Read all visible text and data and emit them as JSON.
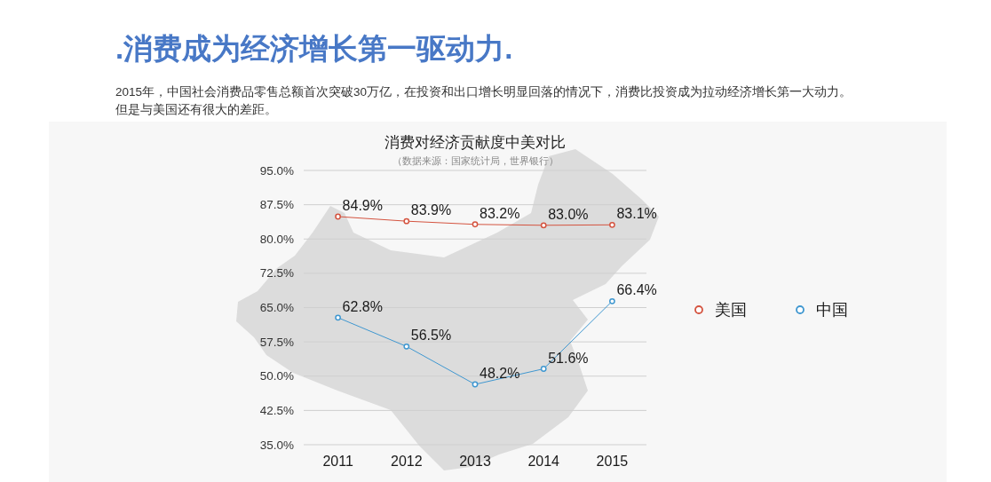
{
  "chart_data": {
    "type": "line",
    "title": ".消费成为经济增长第一驱动力.",
    "subtitle": "2015年，中国社会消费品零售总额首次突破30万亿，在投资和出口增长明显回落的情况下，消费比投资成为拉动经济增长第一大动力。但是与美国还有很大的差距。",
    "annotations": [
      "消费对经济贡献度中美对比",
      "（数据来源：国家统计局，世界银行）"
    ],
    "categories": [
      "2011",
      "2012",
      "2013",
      "2014",
      "2015"
    ],
    "series": [
      {
        "name": "美国",
        "color": "#d4533f",
        "values": [
          84.9,
          83.9,
          83.2,
          83.0,
          83.1
        ],
        "value_labels": [
          "84.9%",
          "83.9%",
          "83.2%",
          "83.0%",
          "83.1%"
        ]
      },
      {
        "name": "中国",
        "color": "#3f97d0",
        "values": [
          62.8,
          56.5,
          48.2,
          51.6,
          66.4
        ],
        "value_labels": [
          "62.8%",
          "56.5%",
          "48.2%",
          "51.6%",
          "66.4%"
        ]
      }
    ],
    "ylim": [
      35,
      95
    ],
    "yticks": [
      {
        "value": 35,
        "label": "35.0%"
      },
      {
        "value": 42.5,
        "label": "42.5%"
      },
      {
        "value": 50,
        "label": "50.0%"
      },
      {
        "value": 57.5,
        "label": "57.5%"
      },
      {
        "value": 65,
        "label": "65.0%"
      },
      {
        "value": 72.5,
        "label": "72.5%"
      },
      {
        "value": 80,
        "label": "80.0%"
      },
      {
        "value": 87.5,
        "label": "87.5%"
      },
      {
        "value": 95,
        "label": "95.0%"
      }
    ],
    "grid": "y",
    "legend": "right",
    "marker": "circle",
    "line_style": "solid"
  }
}
